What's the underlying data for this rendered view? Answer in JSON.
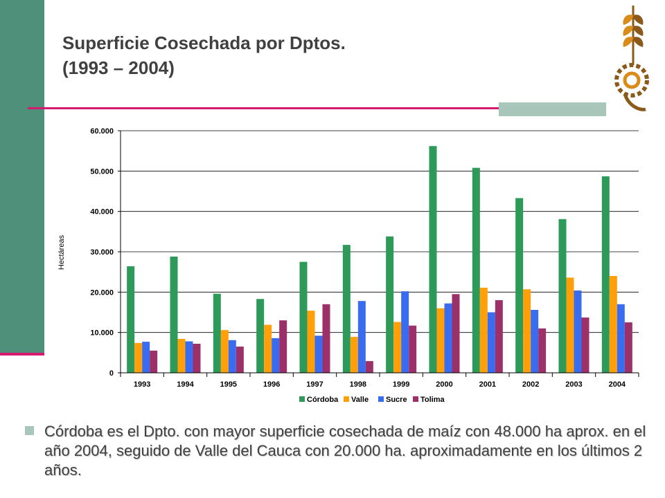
{
  "slide": {
    "title_line1": "Superficie Cosechada por Dptos.",
    "title_line2": "(1993 – 2004)",
    "bullet": "Córdoba es el Dpto. con mayor superficie cosechada de maíz con 48.000 ha aprox. en el año 2004, seguido de Valle del Cauca con 20.000 ha. aproximadamente en los últimos 2 años."
  },
  "logo": {
    "icon": "wheat-gear-logo",
    "colors": [
      "#8b5a1b",
      "#d98c1a"
    ]
  },
  "colors": {
    "accent_line": "#d6186e",
    "side_bar": "#4e907a",
    "deco": "#a9c6bb"
  },
  "chart_data": {
    "type": "bar",
    "categories": [
      "1993",
      "1994",
      "1995",
      "1996",
      "1997",
      "1998",
      "1999",
      "2000",
      "2001",
      "2002",
      "2003",
      "2004"
    ],
    "series": [
      {
        "name": "Córdoba",
        "color": "#2e9a5a",
        "values": [
          26400,
          28800,
          19600,
          18300,
          27500,
          31700,
          33800,
          56200,
          50800,
          43300,
          38100,
          48700
        ]
      },
      {
        "name": "Valle",
        "color": "#ffa00a",
        "values": [
          7400,
          8400,
          10600,
          11900,
          15400,
          8900,
          12600,
          16000,
          21100,
          20700,
          23600,
          24000
        ]
      },
      {
        "name": "Sucre",
        "color": "#3a6cf0",
        "values": [
          7700,
          7800,
          8100,
          8600,
          9200,
          17800,
          20200,
          17200,
          15000,
          15600,
          20400,
          17000
        ]
      },
      {
        "name": "Tolima",
        "color": "#9b3168",
        "values": [
          5500,
          7200,
          6500,
          13000,
          17000,
          2900,
          11700,
          19500,
          18000,
          11000,
          13700,
          12500
        ]
      }
    ],
    "ylabel": "Hectáreas",
    "yticks": [
      "0",
      "10.000",
      "20.000",
      "30.000",
      "40.000",
      "50.000",
      "60.000"
    ],
    "ylim": [
      0,
      60000
    ],
    "grid": true,
    "legend_position": "bottom"
  }
}
